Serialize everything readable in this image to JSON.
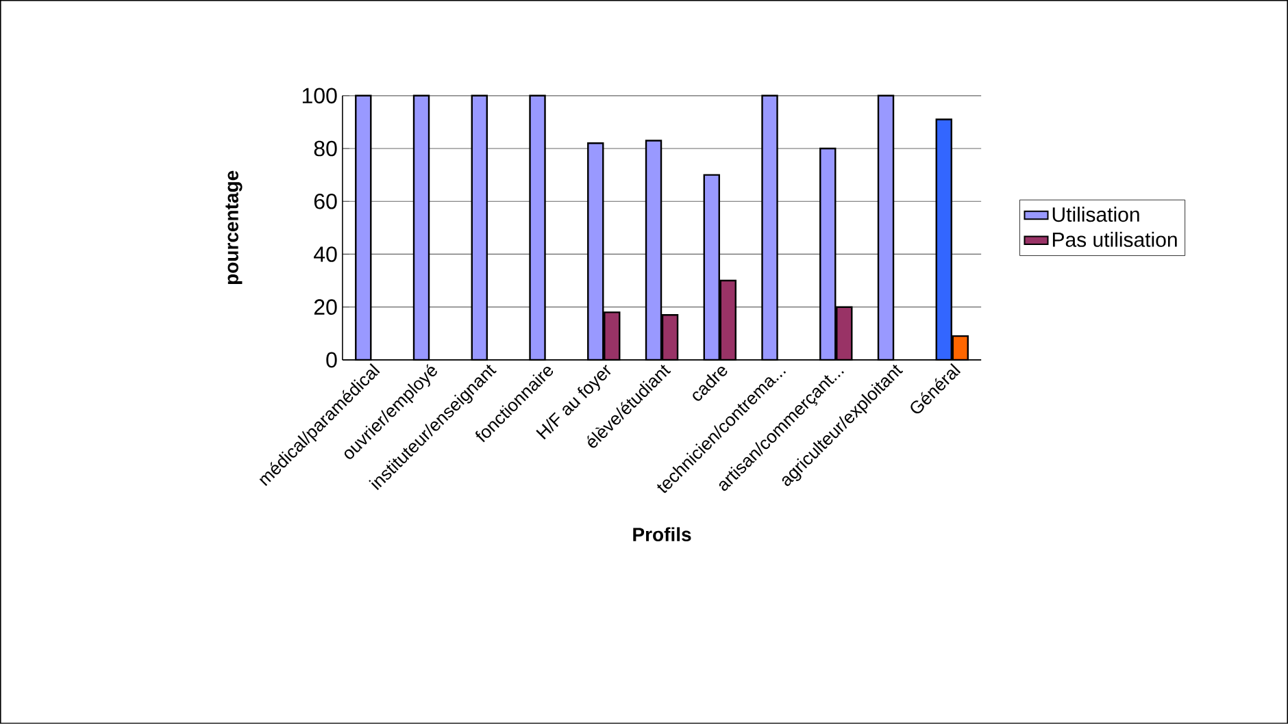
{
  "chart_data": {
    "type": "bar",
    "xlabel": "Profils",
    "ylabel": "pourcentage",
    "categories": [
      "médical/paramédical",
      "ouvrier/employé",
      "instituteur/enseignant",
      "fonctionnaire",
      "H/F au foyer",
      "élève/étudiant",
      "cadre",
      "technicien/contrema...",
      "artisan/commerçant...",
      "agriculteur/exploitant",
      "Général"
    ],
    "series": [
      {
        "name": "Utilisation",
        "color": "#9999ff",
        "colors": [
          "#9999ff",
          "#9999ff",
          "#9999ff",
          "#9999ff",
          "#9999ff",
          "#9999ff",
          "#9999ff",
          "#9999ff",
          "#9999ff",
          "#9999ff",
          "#3366ff"
        ],
        "values": [
          100,
          100,
          100,
          100,
          82,
          83,
          70,
          100,
          80,
          100,
          91
        ]
      },
      {
        "name": "Pas utilisation",
        "color": "#993366",
        "colors": [
          "#993366",
          "#993366",
          "#993366",
          "#993366",
          "#993366",
          "#993366",
          "#993366",
          "#993366",
          "#993366",
          "#993366",
          "#ff6600"
        ],
        "values": [
          null,
          null,
          null,
          null,
          18,
          17,
          30,
          null,
          20,
          null,
          9
        ]
      }
    ],
    "ylim": [
      0,
      100
    ],
    "yticks": [
      0,
      20,
      40,
      60,
      80,
      100
    ],
    "grid": "y",
    "legend": "right"
  }
}
